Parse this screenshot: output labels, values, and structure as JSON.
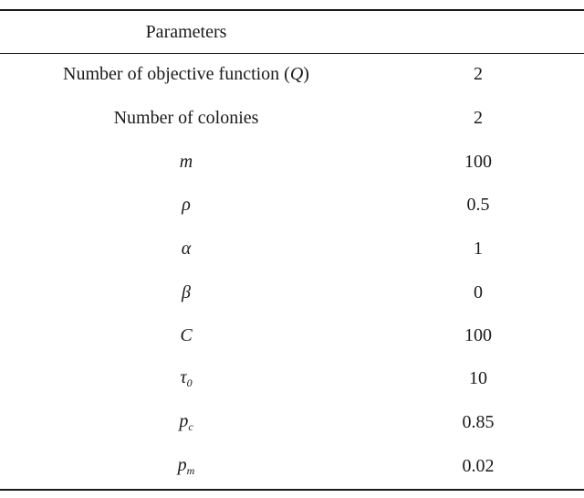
{
  "table": {
    "header": "Parameters",
    "rows": [
      {
        "param_prefix": "Number of objective function (",
        "param_symbol": "Q",
        "param_suffix": ")",
        "value": "2"
      },
      {
        "param": "Number of colonies",
        "value": "2"
      },
      {
        "symbol": "m",
        "value": "100"
      },
      {
        "symbol": "ρ",
        "value": "0.5"
      },
      {
        "symbol": "α",
        "value": "1"
      },
      {
        "symbol": "β",
        "value": "0"
      },
      {
        "symbol": "C",
        "value": "100"
      },
      {
        "symbol": "τ",
        "subscript": "0",
        "value": "10"
      },
      {
        "symbol": "p",
        "subscript": "c",
        "value": "0.85"
      },
      {
        "symbol": "p",
        "subscript": "m",
        "value": "0.02"
      }
    ]
  }
}
